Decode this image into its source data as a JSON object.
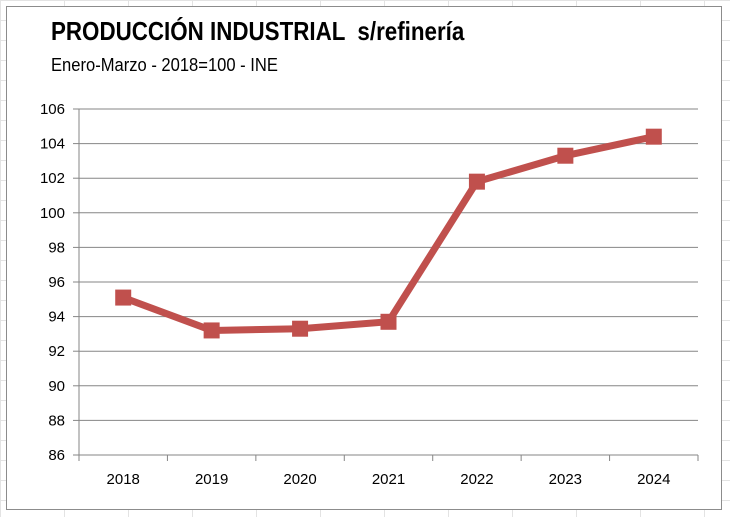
{
  "chart_data": {
    "type": "line",
    "title": "PRODUCCIÓN INDUSTRIAL  s/refinería",
    "subtitle": "Enero-Marzo - 2018=100 - INE",
    "xlabel": "",
    "ylabel": "",
    "categories": [
      "2018",
      "2019",
      "2020",
      "2021",
      "2022",
      "2023",
      "2024"
    ],
    "series": [
      {
        "values": [
          95.1,
          93.2,
          93.3,
          93.7,
          101.8,
          103.3,
          104.4
        ],
        "color": "#c0504d",
        "marker": "square"
      }
    ],
    "ylim": [
      86,
      106
    ],
    "yticks": [
      "86",
      "88",
      "90",
      "92",
      "94",
      "96",
      "98",
      "100",
      "102",
      "104",
      "106"
    ],
    "grid": true,
    "legend": "none"
  }
}
